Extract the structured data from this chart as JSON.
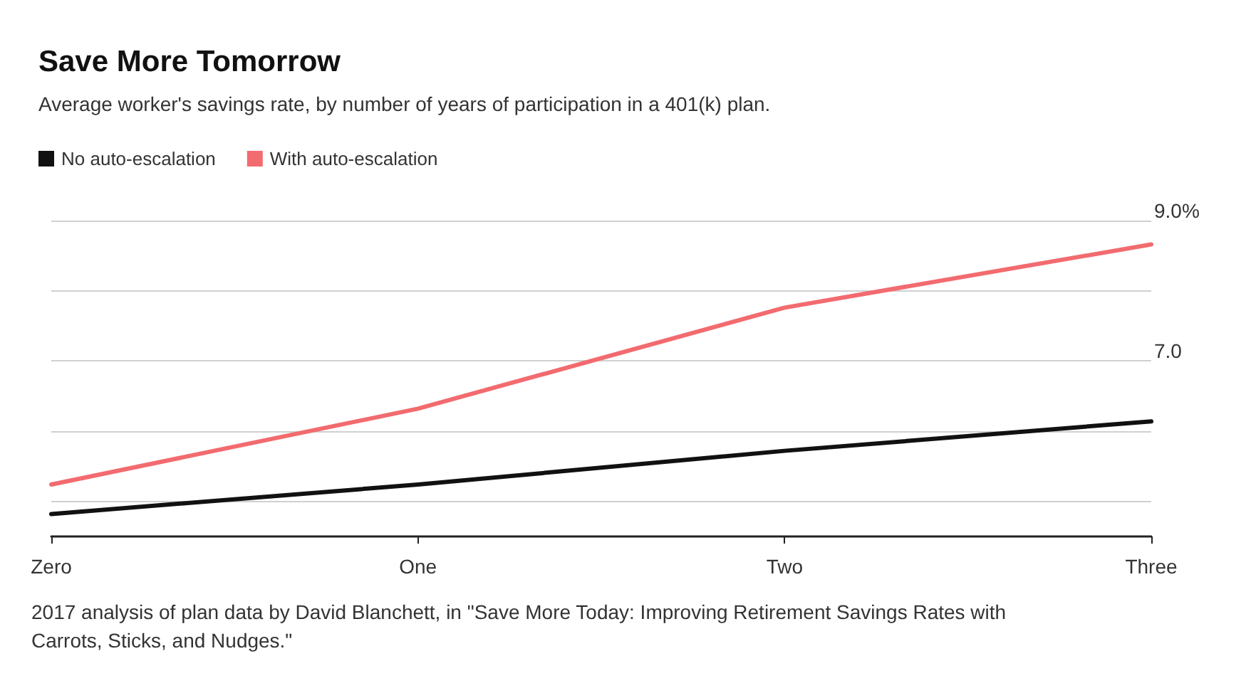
{
  "chart_data": {
    "type": "line",
    "title": "Save More Tomorrow",
    "subtitle": "Average worker's savings rate, by number of years of participation in a 401(k) plan.",
    "categories": [
      "Zero",
      "One",
      "Two",
      "Three"
    ],
    "series": [
      {
        "name": "No auto-escalation",
        "color": "#111111",
        "values": [
          4.82,
          5.24,
          5.72,
          6.14
        ]
      },
      {
        "name": "With auto-escalation",
        "color": "#f26b6f",
        "values": [
          5.24,
          6.32,
          7.76,
          8.66
        ]
      }
    ],
    "ylim": [
      4.5,
      9.0
    ],
    "yticks": [
      {
        "value": 5,
        "label": null
      },
      {
        "value": 6,
        "label": null
      },
      {
        "value": 7,
        "label": "7.0"
      },
      {
        "value": 8,
        "label": null
      },
      {
        "value": 9,
        "label": "9.0%"
      }
    ],
    "grid": "y",
    "legend": "top left",
    "marker": "none",
    "line_style": "solid",
    "annotations": [
      "2017 analysis of plan data by David Blanchett, in \"Save More Today: Improving Retirement Savings Rates with Carrots, Sticks, and Nudges.\""
    ]
  }
}
